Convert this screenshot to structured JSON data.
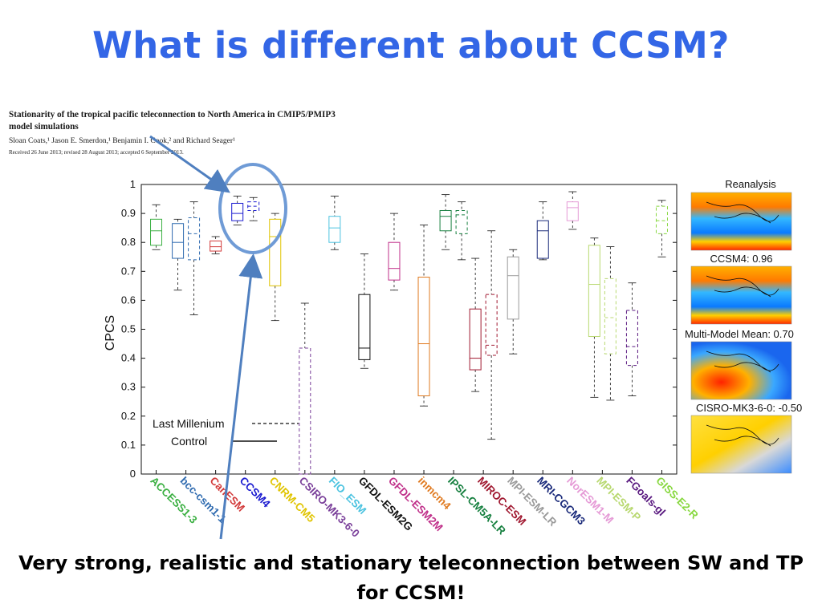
{
  "slide": {
    "title": "What is different about CCSM?",
    "caption": "Very strong, realistic and stationary teleconnection between SW and TP for CCSM!"
  },
  "paper": {
    "title": "Stationarity of the tropical pacific teleconnection to North America in CMIP5/PMIP3 model simulations",
    "authors": "Sloan Coats,¹ Jason E. Smerdon,¹ Benjamin I. Cook,² and Richard Seager¹",
    "received": "Received 26 June 2013; revised 28 August 2013; accepted 6 September 2013."
  },
  "maps": [
    {
      "label": "Reanalysis"
    },
    {
      "label": "CCSM4: 0.96"
    },
    {
      "label": "Multi-Model Mean: 0.70"
    },
    {
      "label": "CISRO-MK3-6-0: -0.50"
    }
  ],
  "colors": {
    "title": "#3366e6",
    "highlight_circle": "#6f9bd6",
    "arrow": "#4f7fbf"
  },
  "chart_data": {
    "type": "box",
    "ylabel": "CPCS",
    "ylim": [
      0,
      1
    ],
    "yticks": [
      "0",
      "0.1",
      "0.2",
      "0.3",
      "0.4",
      "0.5",
      "0.6",
      "0.7",
      "0.8",
      "0.9",
      "1"
    ],
    "legend": {
      "position": "bottom-left",
      "entries": [
        {
          "label": "Last Millenium",
          "style": "dashed"
        },
        {
          "label": "Control",
          "style": "solid"
        }
      ]
    },
    "categories": [
      "ACCESS1-3",
      "bcc-csm1-1",
      "CanESM",
      "CCSM4",
      "CNRM-CM5",
      "CSIRO-MK3-6-0",
      "FIO_ESM",
      "GFDL-ESM2G",
      "GFDL-ESM2M",
      "inmcm4",
      "IPSL-CM5A-LR",
      "MIROC-ESM",
      "MPI-ESM-LR",
      "MRI-CGCM3",
      "NorESM1-M",
      "MPI-ESM-P",
      "FGoals-gl",
      "GISS-E2-R"
    ],
    "category_colors": [
      "#3cb043",
      "#2f6bb0",
      "#d23a3a",
      "#1a1ad0",
      "#e0c400",
      "#7a3f9a",
      "#4cc3e0",
      "#111111",
      "#c0308a",
      "#e07a20",
      "#178040",
      "#a01830",
      "#9a9a9a",
      "#1a2a7a",
      "#e59ad6",
      "#b8d870",
      "#5a1a80",
      "#88d840"
    ],
    "series": [
      {
        "name": "Control",
        "category": "ACCESS1-3",
        "whisker_low": 0.775,
        "q1": 0.79,
        "median": 0.84,
        "q3": 0.88,
        "whisker_high": 0.93
      },
      {
        "name": "Control",
        "category": "bcc-csm1-1",
        "whisker_low": 0.635,
        "q1": 0.745,
        "median": 0.8,
        "q3": 0.865,
        "whisker_high": 0.88
      },
      {
        "name": "Last Millenium",
        "category": "bcc-csm1-1",
        "whisker_low": 0.55,
        "q1": 0.74,
        "median": 0.83,
        "q3": 0.885,
        "whisker_high": 0.94
      },
      {
        "name": "Control",
        "category": "CanESM",
        "whisker_low": 0.76,
        "q1": 0.77,
        "median": 0.785,
        "q3": 0.805,
        "whisker_high": 0.82
      },
      {
        "name": "Control",
        "category": "CCSM4",
        "whisker_low": 0.86,
        "q1": 0.875,
        "median": 0.9,
        "q3": 0.935,
        "whisker_high": 0.96
      },
      {
        "name": "Last Millenium",
        "category": "CCSM4",
        "whisker_low": 0.875,
        "q1": 0.91,
        "median": 0.925,
        "q3": 0.94,
        "whisker_high": 0.955
      },
      {
        "name": "Control",
        "category": "CNRM-CM5",
        "whisker_low": 0.53,
        "q1": 0.65,
        "median": 0.82,
        "q3": 0.88,
        "whisker_high": 0.9
      },
      {
        "name": "Last Millenium",
        "category": "CSIRO-MK3-6-0",
        "whisker_low": 0.0,
        "q1": 0.0,
        "median": 0.0,
        "q3": 0.435,
        "whisker_high": 0.59
      },
      {
        "name": "Control",
        "category": "FIO_ESM",
        "whisker_low": 0.775,
        "q1": 0.8,
        "median": 0.85,
        "q3": 0.89,
        "whisker_high": 0.96
      },
      {
        "name": "Control",
        "category": "GFDL-ESM2G",
        "whisker_low": 0.365,
        "q1": 0.395,
        "median": 0.435,
        "q3": 0.62,
        "whisker_high": 0.76
      },
      {
        "name": "Control",
        "category": "GFDL-ESM2M",
        "whisker_low": 0.635,
        "q1": 0.67,
        "median": 0.71,
        "q3": 0.8,
        "whisker_high": 0.9
      },
      {
        "name": "Control",
        "category": "inmcm4",
        "whisker_low": 0.235,
        "q1": 0.27,
        "median": 0.45,
        "q3": 0.68,
        "whisker_high": 0.86
      },
      {
        "name": "Control",
        "category": "IPSL-CM5A-LR",
        "whisker_low": 0.775,
        "q1": 0.84,
        "median": 0.89,
        "q3": 0.91,
        "whisker_high": 0.965
      },
      {
        "name": "Last Millenium",
        "category": "IPSL-CM5A-LR",
        "whisker_low": 0.74,
        "q1": 0.83,
        "median": 0.895,
        "q3": 0.91,
        "whisker_high": 0.94
      },
      {
        "name": "Control",
        "category": "MIROC-ESM",
        "whisker_low": 0.285,
        "q1": 0.36,
        "median": 0.4,
        "q3": 0.57,
        "whisker_high": 0.745
      },
      {
        "name": "Last Millenium",
        "category": "MIROC-ESM",
        "whisker_low": 0.12,
        "q1": 0.41,
        "median": 0.445,
        "q3": 0.62,
        "whisker_high": 0.84
      },
      {
        "name": "Control",
        "category": "MPI-ESM-LR",
        "whisker_low": 0.415,
        "q1": 0.535,
        "median": 0.685,
        "q3": 0.75,
        "whisker_high": 0.775
      },
      {
        "name": "Control",
        "category": "MRI-CGCM3",
        "whisker_low": 0.74,
        "q1": 0.745,
        "median": 0.84,
        "q3": 0.875,
        "whisker_high": 0.94
      },
      {
        "name": "Control",
        "category": "NorESM1-M",
        "whisker_low": 0.845,
        "q1": 0.875,
        "median": 0.92,
        "q3": 0.94,
        "whisker_high": 0.975
      },
      {
        "name": "Control",
        "category": "MPI-ESM-P",
        "whisker_low": 0.265,
        "q1": 0.475,
        "median": 0.655,
        "q3": 0.79,
        "whisker_high": 0.815
      },
      {
        "name": "Last Millenium",
        "category": "MPI-ESM-P",
        "whisker_low": 0.255,
        "q1": 0.415,
        "median": 0.54,
        "q3": 0.675,
        "whisker_high": 0.785
      },
      {
        "name": "Last Millenium",
        "category": "FGoals-gl",
        "whisker_low": 0.27,
        "q1": 0.375,
        "median": 0.44,
        "q3": 0.565,
        "whisker_high": 0.66
      },
      {
        "name": "Last Millenium",
        "category": "GISS-E2-R",
        "whisker_low": 0.75,
        "q1": 0.83,
        "median": 0.875,
        "q3": 0.925,
        "whisker_high": 0.945
      }
    ]
  }
}
